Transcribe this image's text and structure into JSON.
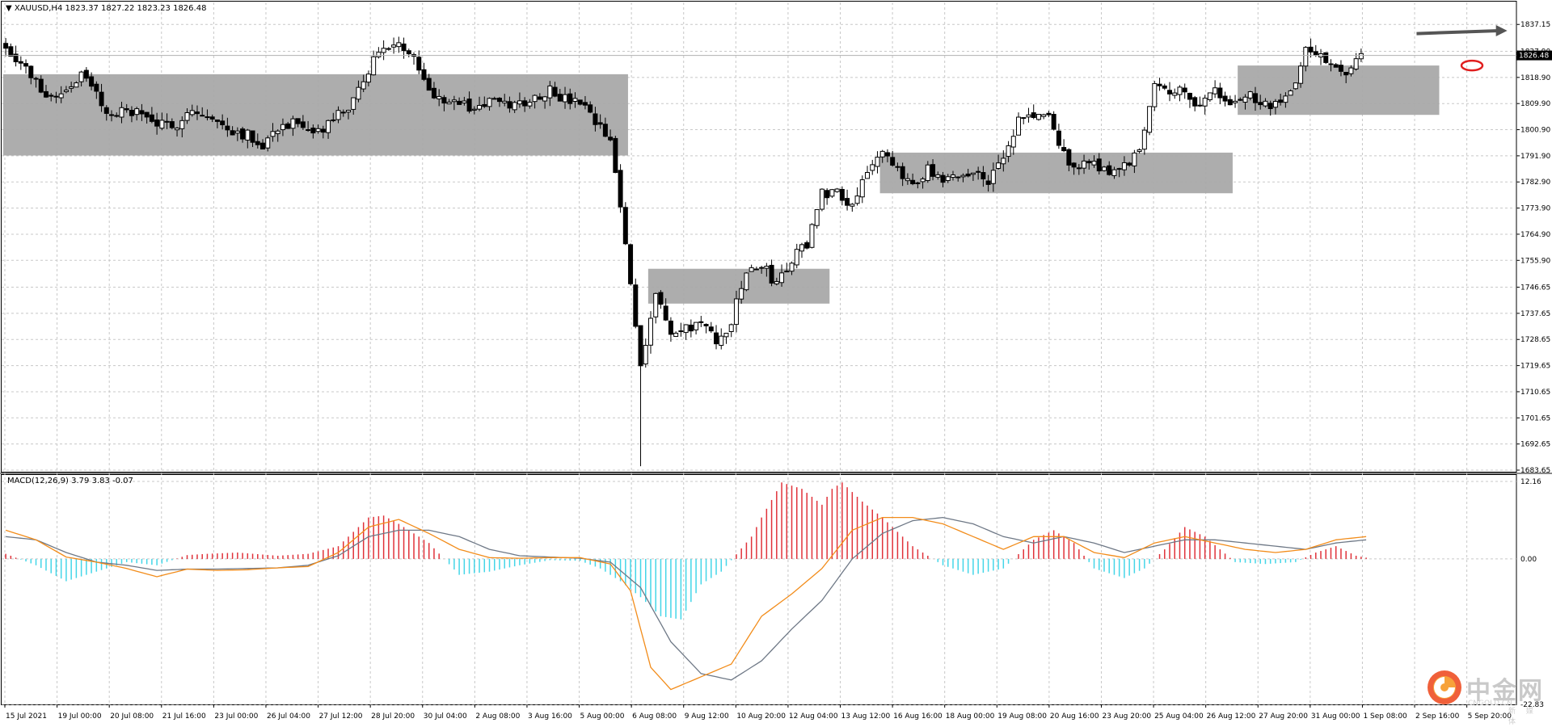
{
  "header": {
    "symbol_line": "▼ XAUUSD,H4  1823.37 1827.22 1823.23 1826.48",
    "macd_line": "MACD(12,26,9) 3.79 3.83 -0.07"
  },
  "watermark": {
    "cn": "中金网",
    "en": "CNGOLD.CN",
    "media": "新 媒 体"
  },
  "colors": {
    "bull": "#ffffff",
    "bear": "#000000",
    "hist_pos": "#e0323a",
    "hist_neg": "#44d6e8",
    "macd_line": "#f28c1a",
    "signal_line": "#6e7886",
    "zone": "#a9a9a9",
    "grid": "#c8c8c8",
    "arrow": "#555555",
    "ellipse": "#e01e1e"
  },
  "chart_data": [
    {
      "type": "candlestick",
      "symbol": "XAUUSD",
      "timeframe": "H4",
      "ylim": [
        1683.65,
        1840.0
      ],
      "y_ticks": [
        "1837.15",
        "1827.90",
        "1818.90",
        "1809.90",
        "1800.90",
        "1791.90",
        "1782.90",
        "1773.90",
        "1764.90",
        "1755.90",
        "1746.65",
        "1737.65",
        "1728.65",
        "1719.65",
        "1710.65",
        "1701.65",
        "1692.65",
        "1683.65"
      ],
      "current_price": "1826.48",
      "x_labels": [
        "15 Jul 2021",
        "19 Jul 00:00",
        "20 Jul 08:00",
        "21 Jul 16:00",
        "23 Jul 00:00",
        "26 Jul 04:00",
        "27 Jul 12:00",
        "28 Jul 20:00",
        "30 Jul 04:00",
        "2 Aug 08:00",
        "3 Aug 16:00",
        "5 Aug 00:00",
        "6 Aug 08:00",
        "9 Aug 12:00",
        "10 Aug 20:00",
        "12 Aug 04:00",
        "13 Aug 12:00",
        "16 Aug 16:00",
        "18 Aug 00:00",
        "19 Aug 08:00",
        "20 Aug 16:00",
        "23 Aug 20:00",
        "25 Aug 04:00",
        "26 Aug 12:00",
        "27 Aug 20:00",
        "31 Aug 00:00",
        "1 Sep 08:00",
        "2 Sep 16:00",
        "5 Sep 20:00"
      ],
      "close_path": [
        [
          0,
          1830
        ],
        [
          3,
          1824
        ],
        [
          6,
          1817
        ],
        [
          9,
          1812
        ],
        [
          12,
          1815
        ],
        [
          15,
          1820
        ],
        [
          18,
          1813
        ],
        [
          21,
          1805
        ],
        [
          24,
          1808
        ],
        [
          27,
          1806
        ],
        [
          30,
          1803
        ],
        [
          33,
          1801
        ],
        [
          36,
          1808
        ],
        [
          39,
          1806
        ],
        [
          42,
          1803
        ],
        [
          45,
          1801
        ],
        [
          48,
          1799
        ],
        [
          51,
          1796
        ],
        [
          54,
          1802
        ],
        [
          57,
          1803
        ],
        [
          60,
          1799
        ],
        [
          63,
          1801
        ],
        [
          66,
          1806
        ],
        [
          69,
          1810
        ],
        [
          72,
          1822
        ],
        [
          75,
          1830
        ],
        [
          78,
          1829
        ],
        [
          81,
          1828
        ],
        [
          84,
          1814
        ],
        [
          87,
          1812
        ],
        [
          90,
          1810
        ],
        [
          93,
          1808
        ],
        [
          96,
          1811
        ],
        [
          99,
          1809
        ],
        [
          102,
          1810
        ],
        [
          105,
          1812
        ],
        [
          108,
          1815
        ],
        [
          111,
          1811
        ],
        [
          114,
          1810
        ],
        [
          117,
          1803
        ],
        [
          120,
          1797
        ],
        [
          123,
          1762
        ],
        [
          126,
          1720
        ],
        [
          129,
          1745
        ],
        [
          132,
          1730
        ],
        [
          135,
          1732
        ],
        [
          138,
          1735
        ],
        [
          141,
          1727
        ],
        [
          144,
          1735
        ],
        [
          147,
          1752
        ],
        [
          150,
          1754
        ],
        [
          153,
          1748
        ],
        [
          156,
          1756
        ],
        [
          159,
          1762
        ],
        [
          162,
          1779
        ],
        [
          165,
          1780
        ],
        [
          168,
          1775
        ],
        [
          171,
          1788
        ],
        [
          174,
          1792
        ],
        [
          177,
          1786
        ],
        [
          180,
          1783
        ],
        [
          183,
          1787
        ],
        [
          186,
          1782
        ],
        [
          189,
          1785
        ],
        [
          192,
          1786
        ],
        [
          195,
          1784
        ],
        [
          198,
          1790
        ],
        [
          201,
          1804
        ],
        [
          204,
          1806
        ],
        [
          207,
          1805
        ],
        [
          210,
          1792
        ],
        [
          213,
          1788
        ],
        [
          216,
          1790
        ],
        [
          219,
          1786
        ],
        [
          222,
          1788
        ],
        [
          225,
          1794
        ],
        [
          228,
          1818
        ],
        [
          231,
          1815
        ],
        [
          234,
          1813
        ],
        [
          237,
          1810
        ],
        [
          240,
          1814
        ],
        [
          243,
          1809
        ],
        [
          246,
          1813
        ],
        [
          249,
          1810
        ],
        [
          252,
          1809
        ],
        [
          255,
          1813
        ],
        [
          258,
          1829
        ],
        [
          261,
          1826
        ],
        [
          264,
          1823
        ],
        [
          267,
          1821
        ],
        [
          269,
          1826
        ]
      ],
      "zones": [
        {
          "x_start": 0,
          "x_end": 123,
          "y_low": 1792,
          "y_high": 1820
        },
        {
          "x_start": 128,
          "x_end": 163,
          "y_low": 1741,
          "y_high": 1753
        },
        {
          "x_start": 174,
          "x_end": 243,
          "y_low": 1779,
          "y_high": 1793
        },
        {
          "x_start": 245,
          "x_end": 284,
          "y_low": 1806,
          "y_high": 1823
        }
      ],
      "annotations": [
        {
          "kind": "arrow",
          "x_from": 280,
          "y_from": 1834,
          "x_to": 298,
          "y_to": 1835
        },
        {
          "kind": "ellipse",
          "x": 291,
          "y": 1823
        }
      ]
    },
    {
      "type": "macd",
      "title": "MACD(12,26,9) 3.79 3.83 -0.07",
      "ylim": [
        -22.83,
        12.16
      ],
      "y_ticks": [
        "12.16",
        "0.00",
        "-22.83"
      ],
      "macd_path": [
        [
          0,
          4.5
        ],
        [
          6,
          3.0
        ],
        [
          12,
          0.3
        ],
        [
          18,
          -0.5
        ],
        [
          24,
          -1.5
        ],
        [
          30,
          -2.8
        ],
        [
          36,
          -1.6
        ],
        [
          42,
          -1.8
        ],
        [
          48,
          -1.7
        ],
        [
          54,
          -1.4
        ],
        [
          60,
          -1.2
        ],
        [
          66,
          1.0
        ],
        [
          72,
          5.0
        ],
        [
          78,
          6.2
        ],
        [
          84,
          4.0
        ],
        [
          90,
          1.5
        ],
        [
          96,
          0.2
        ],
        [
          102,
          0.1
        ],
        [
          108,
          0.2
        ],
        [
          114,
          0.2
        ],
        [
          120,
          -0.8
        ],
        [
          124,
          -5.0
        ],
        [
          128,
          -17.0
        ],
        [
          132,
          -20.5
        ],
        [
          138,
          -18.5
        ],
        [
          144,
          -16.5
        ],
        [
          150,
          -9.0
        ],
        [
          156,
          -5.5
        ],
        [
          162,
          -1.5
        ],
        [
          168,
          4.5
        ],
        [
          174,
          6.5
        ],
        [
          180,
          6.5
        ],
        [
          186,
          5.5
        ],
        [
          192,
          3.5
        ],
        [
          198,
          1.5
        ],
        [
          204,
          3.5
        ],
        [
          210,
          3.5
        ],
        [
          216,
          1.0
        ],
        [
          222,
          0.2
        ],
        [
          228,
          2.5
        ],
        [
          234,
          3.5
        ],
        [
          240,
          2.5
        ],
        [
          246,
          1.5
        ],
        [
          252,
          1.0
        ],
        [
          258,
          1.5
        ],
        [
          264,
          3.0
        ],
        [
          270,
          3.5
        ]
      ],
      "signal_path": [
        [
          0,
          3.5
        ],
        [
          6,
          3.0
        ],
        [
          12,
          1.0
        ],
        [
          18,
          -0.5
        ],
        [
          24,
          -1.0
        ],
        [
          30,
          -1.8
        ],
        [
          36,
          -1.6
        ],
        [
          42,
          -1.6
        ],
        [
          48,
          -1.5
        ],
        [
          54,
          -1.4
        ],
        [
          60,
          -1.0
        ],
        [
          66,
          0.5
        ],
        [
          72,
          3.5
        ],
        [
          78,
          4.5
        ],
        [
          84,
          4.5
        ],
        [
          90,
          3.5
        ],
        [
          96,
          1.5
        ],
        [
          102,
          0.5
        ],
        [
          108,
          0.3
        ],
        [
          114,
          0.1
        ],
        [
          120,
          -0.5
        ],
        [
          126,
          -4.5
        ],
        [
          132,
          -13.0
        ],
        [
          138,
          -18.0
        ],
        [
          144,
          -19.0
        ],
        [
          150,
          -16.0
        ],
        [
          156,
          -11.0
        ],
        [
          162,
          -6.5
        ],
        [
          168,
          0.0
        ],
        [
          174,
          4.0
        ],
        [
          180,
          6.0
        ],
        [
          186,
          6.5
        ],
        [
          192,
          5.5
        ],
        [
          198,
          3.5
        ],
        [
          204,
          2.5
        ],
        [
          210,
          3.5
        ],
        [
          216,
          2.5
        ],
        [
          222,
          1.0
        ],
        [
          228,
          2.0
        ],
        [
          234,
          3.0
        ],
        [
          240,
          3.0
        ],
        [
          246,
          2.5
        ],
        [
          252,
          2.0
        ],
        [
          258,
          1.5
        ],
        [
          264,
          2.5
        ],
        [
          270,
          3.0
        ]
      ],
      "hist_path": [
        [
          0,
          0.8
        ],
        [
          6,
          -1.0
        ],
        [
          12,
          -3.5
        ],
        [
          18,
          -2.0
        ],
        [
          24,
          -0.5
        ],
        [
          30,
          -1.0
        ],
        [
          36,
          0.6
        ],
        [
          40,
          0.8
        ],
        [
          46,
          1.0
        ],
        [
          54,
          0.5
        ],
        [
          60,
          0.8
        ],
        [
          66,
          2.0
        ],
        [
          72,
          6.5
        ],
        [
          75,
          6.8
        ],
        [
          78,
          5.5
        ],
        [
          84,
          2.5
        ],
        [
          90,
          -2.5
        ],
        [
          96,
          -2.0
        ],
        [
          102,
          -1.0
        ],
        [
          108,
          -0.2
        ],
        [
          114,
          -0.3
        ],
        [
          118,
          -1.5
        ],
        [
          122,
          -3.5
        ],
        [
          126,
          -6.0
        ],
        [
          130,
          -9.0
        ],
        [
          134,
          -9.5
        ],
        [
          138,
          -4.0
        ],
        [
          142,
          -2.0
        ],
        [
          144,
          -0.2
        ],
        [
          148,
          3.5
        ],
        [
          150,
          6.5
        ],
        [
          154,
          12.0
        ],
        [
          158,
          11.0
        ],
        [
          162,
          8.5
        ],
        [
          164,
          11.0
        ],
        [
          166,
          12.0
        ],
        [
          170,
          9.0
        ],
        [
          174,
          6.5
        ],
        [
          180,
          2.0
        ],
        [
          186,
          -1.0
        ],
        [
          192,
          -2.5
        ],
        [
          198,
          -1.5
        ],
        [
          204,
          3.0
        ],
        [
          208,
          4.5
        ],
        [
          212,
          2.5
        ],
        [
          216,
          -1.5
        ],
        [
          222,
          -3.0
        ],
        [
          226,
          -1.5
        ],
        [
          230,
          1.5
        ],
        [
          234,
          5.0
        ],
        [
          238,
          3.5
        ],
        [
          244,
          -0.5
        ],
        [
          250,
          -0.8
        ],
        [
          256,
          -0.5
        ],
        [
          260,
          1.0
        ],
        [
          264,
          2.0
        ],
        [
          268,
          0.5
        ],
        [
          270,
          0.2
        ]
      ]
    }
  ]
}
